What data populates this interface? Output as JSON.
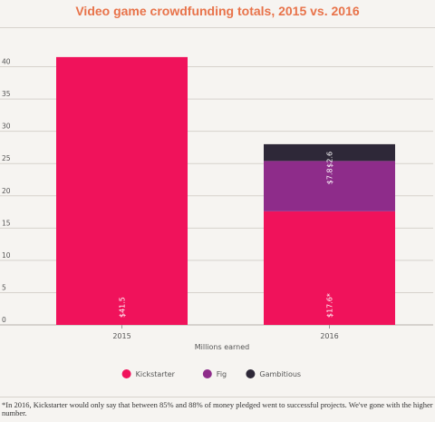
{
  "chart_data": {
    "type": "bar",
    "stacked": true,
    "title": "Video game crowdfunding totals, 2015 vs. 2016",
    "xlabel": "Millions earned",
    "ylabel": "",
    "ylim": [
      0,
      45
    ],
    "yticks": [
      0,
      5,
      10,
      15,
      20,
      25,
      30,
      35,
      40
    ],
    "categories": [
      "2015",
      "2016"
    ],
    "series": [
      {
        "name": "Kickstarter",
        "color": "#f0125b",
        "values": [
          41.5,
          17.6
        ],
        "labels": [
          "$41.5",
          "$17.6*"
        ]
      },
      {
        "name": "Fig",
        "color": "#8e2c8a",
        "values": [
          0,
          7.8
        ],
        "labels": [
          "",
          "$7.8"
        ]
      },
      {
        "name": "Gambitious",
        "color": "#2e2838",
        "values": [
          0,
          2.6
        ],
        "labels": [
          "",
          "$2.6"
        ]
      }
    ],
    "grid": true,
    "legend_position": "bottom-center"
  },
  "footnote": "*In 2016, Kickstarter would only say that between 85% and 88% of money pledged went to successful projects. We've gone with the higher number."
}
